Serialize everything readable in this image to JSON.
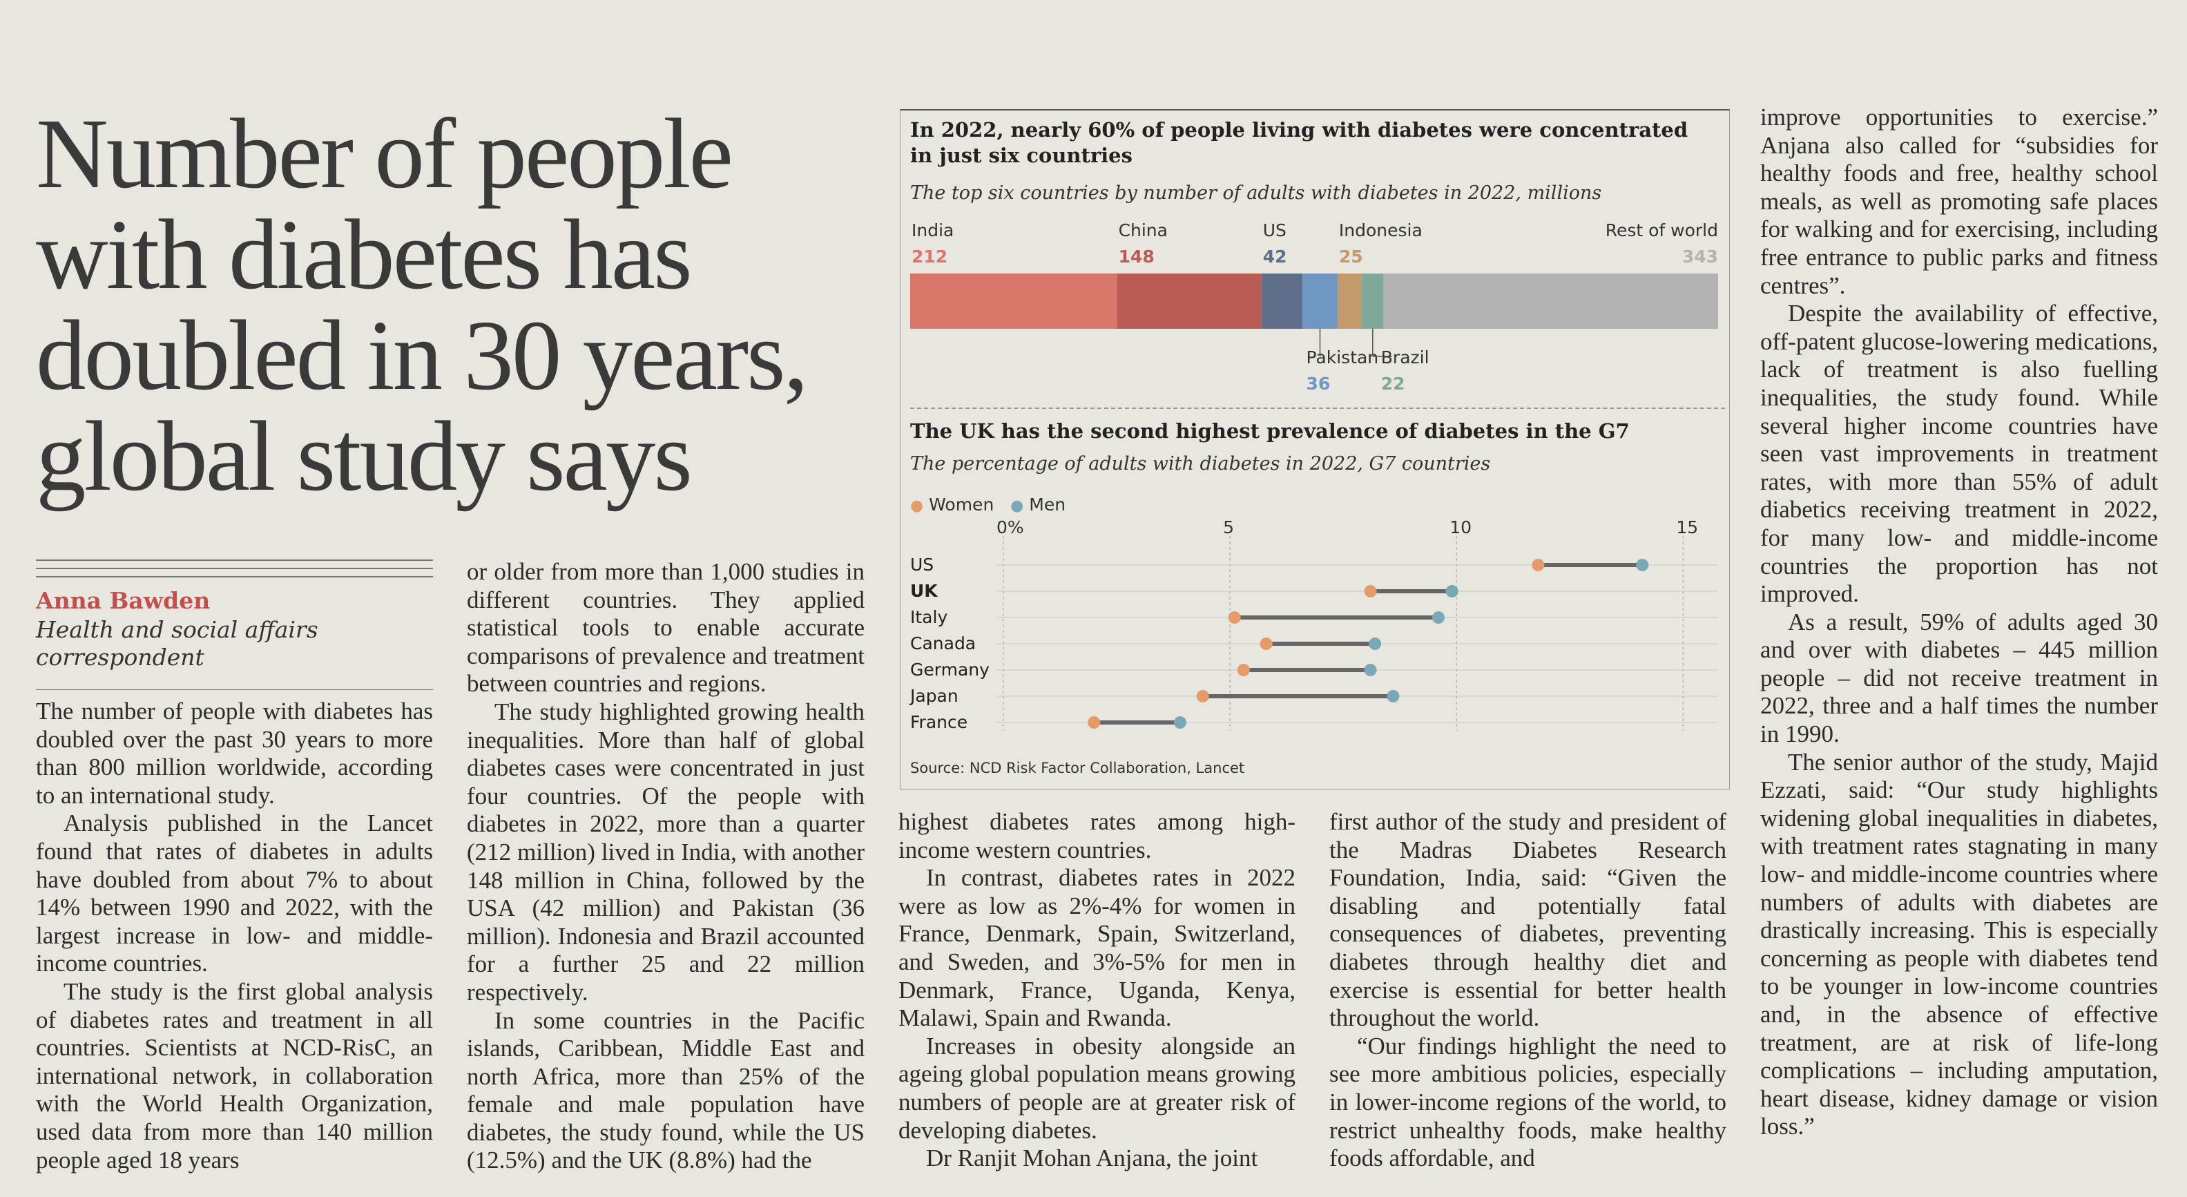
{
  "headline": {
    "lines": [
      "Number of people",
      "with diabetes has",
      "doubled in 30 years,",
      "global study says"
    ]
  },
  "byline": {
    "name": "Anna Bawden",
    "role_line1": "Health and social affairs",
    "role_line2": "correspondent"
  },
  "columns": {
    "col1": [
      "The number of people with diabetes has doubled over the past 30 years to more than 800 million worldwide, according to an international study.",
      "Analysis published in the Lancet found that rates of diabetes in adults have doubled from about 7% to about 14% between 1990 and 2022, with the largest increase in low- and middle-income countries.",
      "The study is the first global analysis of diabetes rates and treatment in all countries. Scientists at NCD-RisC, an international network, in collaboration with the World Health Organization, used data from more than 140 million people aged 18 years"
    ],
    "col2": [
      "or older from more than 1,000 studies in different countries. They applied statistical tools to enable accurate comparisons of prevalence and treatment between countries and regions.",
      "The study highlighted growing health inequalities. More than half of global diabetes cases were concentrated in just four countries. Of the people with diabetes in 2022, more than a quarter (212 million) lived in India, with another 148 million in China, followed by the USA (42 million) and Pakistan (36 million). Indonesia and Brazil accounted for a further 25 and 22 million respectively.",
      "In some countries in the Pacific islands, Caribbean, Middle East and north Africa, more than 25% of the female and male population have diabetes, the study found, while the US (12.5%) and the UK (8.8%) had the"
    ],
    "col3": [
      "highest diabetes rates among high-income western countries.",
      "In contrast, diabetes rates in 2022 were as low as 2%-4% for women in France, Denmark, Spain, Switzerland, and Sweden, and 3%-5% for men in Denmark, France, Uganda, Kenya, Malawi, Spain and Rwanda.",
      "Increases in obesity alongside an ageing global population means growing numbers of people are at greater risk of developing diabetes.",
      "Dr Ranjit Mohan Anjana, the joint"
    ],
    "col4": [
      "first author of the study and president of the Madras Diabetes Research Foundation, India, said: “Given the disabling and potentially fatal consequences of diabetes, preventing diabetes through healthy diet and exercise is essential for better health throughout the world.",
      "“Our findings highlight the need to see more ambitious policies, especially in lower-income regions of the world, to restrict unhealthy foods, make healthy foods affordable, and"
    ],
    "col5": [
      "improve opportunities to exercise.” Anjana also called for “subsidies for healthy foods and free, healthy school meals, as well as promoting safe places for walking and for exercising, including free entrance to public parks and fitness centres”.",
      "Despite the availability of effective, off-patent glucose-lowering medications, lack of treatment is also fuelling inequalities, the study found. While several higher income countries have seen vast improvements in treatment rates, with more than 55% of adult diabetics receiving treatment in 2022, for many low- and middle-income countries the proportion has not improved.",
      "As a result, 59% of adults aged 30 and over with diabetes – 445 million people – did not receive treatment in 2022, three and a half times the number in 1990.",
      "The senior author of the study, Majid Ezzati, said: “Our study highlights widening global inequalities in diabetes, with treatment rates stagnating in many low- and middle-income countries where numbers of adults with diabetes are drastically increasing. This is especially concerning as people with diabetes tend to be younger in low-income countries and, in the absence of effective treatment, are at risk of life-long complications – including amputation, heart disease, kidney damage or vision loss.”"
    ]
  },
  "chart_data": [
    {
      "type": "bar",
      "title": "In 2022, nearly 60% of people living with diabetes were concentrated in just six countries",
      "subtitle": "The top six countries by number of adults with diabetes in 2022, millions",
      "categories": [
        "India",
        "China",
        "US",
        "Pakistan",
        "Indonesia",
        "Brazil",
        "Rest of world"
      ],
      "values": [
        212,
        148,
        42,
        36,
        25,
        22,
        343
      ],
      "value_labels": [
        "212",
        "148",
        "42",
        "36",
        "25",
        "22",
        "343"
      ],
      "colors": [
        "#d9776b",
        "#b95c55",
        "#5f6f8a",
        "#6f97c2",
        "#c39a6c",
        "#7fa89a",
        "#b3b3b3"
      ]
    },
    {
      "type": "scatter",
      "title": "The UK has the second highest prevalence of diabetes in the G7",
      "subtitle": "The percentage of adults with diabetes in 2022, G7 countries",
      "categories": [
        "US",
        "UK",
        "Italy",
        "Canada",
        "Germany",
        "Japan",
        "France"
      ],
      "bold_category": "UK",
      "series": [
        {
          "name": "Women",
          "values": [
            11.8,
            8.1,
            5.1,
            5.8,
            5.3,
            4.4,
            2.0
          ],
          "color": "#e59a6a"
        },
        {
          "name": "Men",
          "values": [
            14.1,
            9.9,
            9.6,
            8.2,
            8.1,
            8.6,
            3.9
          ],
          "color": "#7aa8b5"
        }
      ],
      "xticks": [
        "0%",
        "5",
        "10",
        "15"
      ],
      "xlim": [
        0,
        16
      ],
      "source": "Source: NCD Risk Factor Collaboration, Lancet"
    }
  ]
}
